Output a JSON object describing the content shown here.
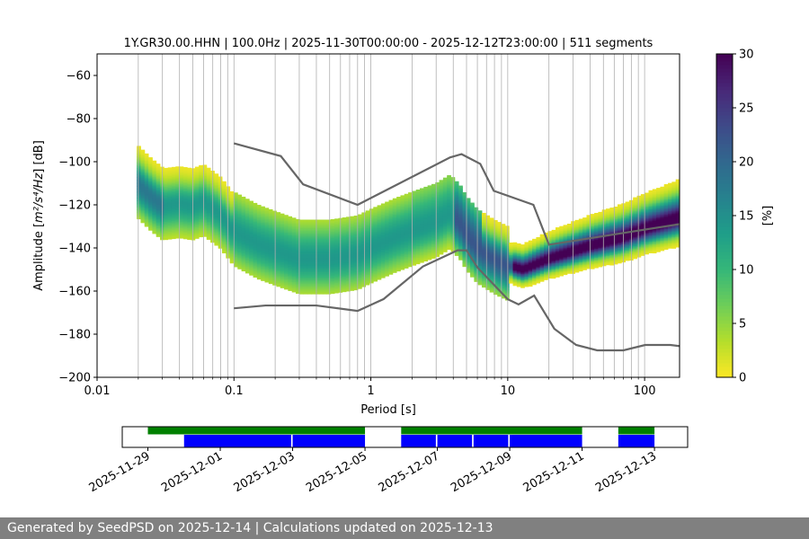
{
  "chart_data": [
    {
      "type": "heatmap",
      "title": "1Y.GR30.00.HHN | 100.0Hz | 2025-11-30T00:00:00 - 2025-12-12T23:00:00 | 511 segments",
      "xlabel": "Period [s]",
      "ylabel_prefix": "Amplitude [",
      "ylabel_math": "m²/s⁴/Hz",
      "ylabel_suffix": "] [dB]",
      "xscale": "log",
      "xlim": [
        0.01,
        180
      ],
      "ylim": [
        -200,
        -50
      ],
      "grid": "vertical",
      "x_ticks": [
        0.01,
        0.1,
        1,
        10,
        100
      ],
      "x_tick_labels": [
        "0.01",
        "0.1",
        "1",
        "10",
        "100"
      ],
      "y_ticks": [
        -200,
        -180,
        -160,
        -140,
        -120,
        -100,
        -80,
        -60
      ],
      "y_tick_labels": [
        "−200",
        "−180",
        "−160",
        "−140",
        "−120",
        "−100",
        "−80",
        "−60"
      ],
      "colorbar": {
        "label": "[%]",
        "range": [
          0,
          30
        ],
        "ticks": [
          0,
          5,
          10,
          15,
          20,
          25,
          30
        ],
        "tick_labels": [
          "0",
          "5",
          "10",
          "15",
          "20",
          "25",
          "30"
        ],
        "colormap": "viridis_r"
      },
      "psd_mode": {
        "x": [
          0.02,
          0.025,
          0.03,
          0.04,
          0.05,
          0.06,
          0.08,
          0.1,
          0.15,
          0.2,
          0.3,
          0.5,
          0.8,
          1,
          1.5,
          2,
          3,
          3.8,
          4.5,
          5,
          6,
          8,
          10,
          13,
          20,
          40,
          70,
          100,
          180
        ],
        "y": [
          -110,
          -116,
          -120,
          -119,
          -120,
          -118,
          -124,
          -132,
          -138,
          -141,
          -145,
          -145,
          -143,
          -140,
          -135,
          -132,
          -128,
          -124,
          -129,
          -134,
          -140,
          -145,
          -148,
          -150,
          -145,
          -139,
          -135,
          -131,
          -126
        ]
      },
      "lines": [
        {
          "name": "high noise model",
          "color": "#666666",
          "x": [
            0.1,
            0.22,
            0.32,
            0.8,
            3.8,
            4.6,
            6.3,
            7.9,
            15.4,
            20,
            354.8
          ],
          "y": [
            -91.5,
            -97.4,
            -110.5,
            -120.0,
            -98.0,
            -96.5,
            -101.0,
            -113.5,
            -120.0,
            -138.5,
            -126.0
          ]
        },
        {
          "name": "low noise model",
          "color": "#666666",
          "x": [
            0.1,
            0.17,
            0.4,
            0.8,
            1.24,
            2.4,
            4.3,
            5,
            6,
            10,
            12,
            15.6,
            21.9,
            31.6,
            45,
            70,
            101,
            154,
            328
          ],
          "y": [
            -168.0,
            -166.7,
            -166.7,
            -169.2,
            -163.7,
            -148.6,
            -141.1,
            -141.1,
            -149.0,
            -163.8,
            -166.2,
            -162.1,
            -177.5,
            -185.0,
            -187.5,
            -187.5,
            -185.0,
            -185.0,
            -187.5
          ]
        }
      ]
    },
    {
      "type": "timeline",
      "x_tick_labels": [
        "2025-11-29",
        "2025-12-01",
        "2025-12-03",
        "2025-12-05",
        "2025-12-07",
        "2025-12-09",
        "2025-12-11",
        "2025-12-13"
      ],
      "x_ticks": [
        "2025-11-29",
        "2025-12-01",
        "2025-12-03",
        "2025-12-05",
        "2025-12-07",
        "2025-12-09",
        "2025-12-11",
        "2025-12-13"
      ],
      "xlim": [
        "2025-11-28T07:00",
        "2025-12-13T22:00"
      ],
      "green_color": "#008000",
      "blue_color": "#0000ff",
      "green_bars": [
        {
          "start": "2025-11-29T00:00",
          "end": "2025-12-05T00:00"
        },
        {
          "start": "2025-12-06T00:00",
          "end": "2025-12-11T00:00"
        },
        {
          "start": "2025-12-12T00:00",
          "end": "2025-12-13T00:00"
        }
      ],
      "blue_bars": [
        {
          "start": "2025-11-30T00:00",
          "end": "2025-12-02T23:00"
        },
        {
          "start": "2025-12-03T00:00",
          "end": "2025-12-05T00:00"
        },
        {
          "start": "2025-12-06T00:00",
          "end": "2025-12-06T23:00"
        },
        {
          "start": "2025-12-07T00:00",
          "end": "2025-12-07T23:00"
        },
        {
          "start": "2025-12-08T00:00",
          "end": "2025-12-08T23:00"
        },
        {
          "start": "2025-12-09T00:00",
          "end": "2025-12-11T00:00"
        },
        {
          "start": "2025-12-12T00:00",
          "end": "2025-12-13T00:00"
        }
      ]
    }
  ],
  "footer": {
    "text": "Generated by SeedPSD on 2025-12-14 | Calculations updated on 2025-12-13"
  }
}
